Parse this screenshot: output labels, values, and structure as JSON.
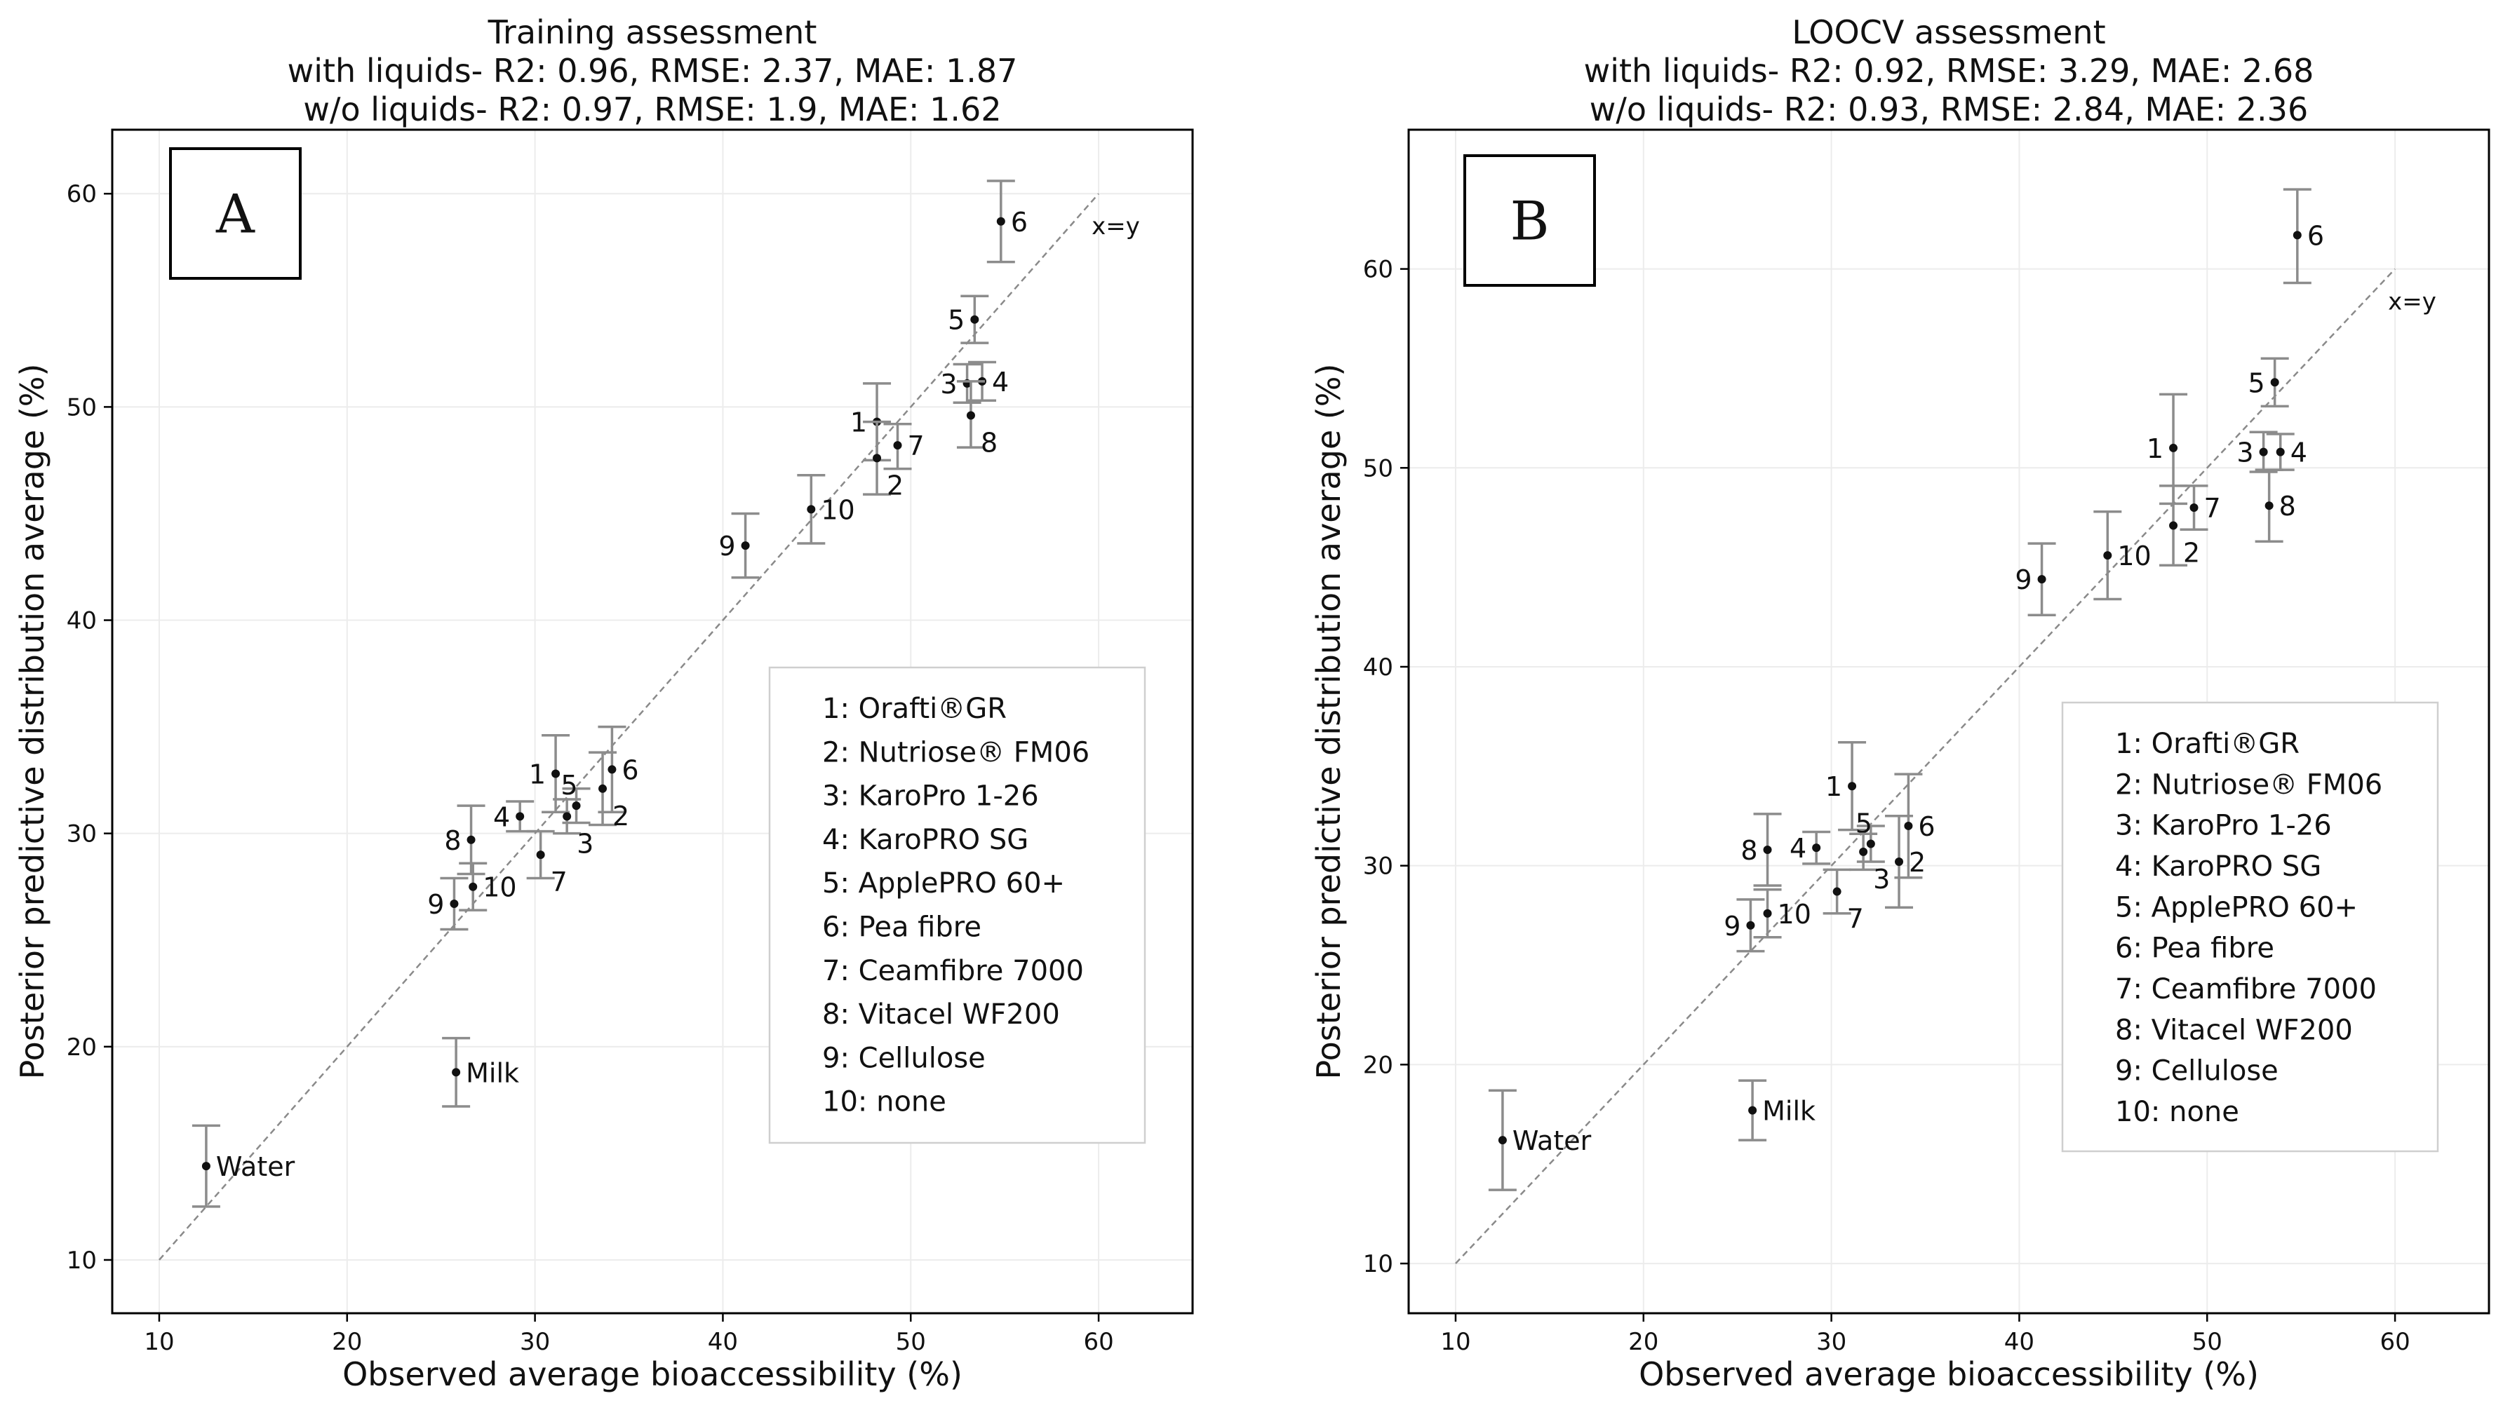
{
  "chart_data": [
    {
      "type": "scatter",
      "panel_label": "A",
      "title": "Training assessment",
      "subtitle_lines": [
        "with liquids- R2: 0.96, RMSE: 2.37, MAE: 1.87",
        "w/o liquids- R2: 0.97, RMSE: 1.9, MAE: 1.62"
      ],
      "xlabel": "Observed average bioaccessibility (%)",
      "ylabel": "Posterior predictive distribution average (%)",
      "xlim": [
        7.5,
        65
      ],
      "ylim": [
        7.5,
        63
      ],
      "xticks": [
        10,
        20,
        30,
        40,
        50,
        60
      ],
      "yticks": [
        10,
        20,
        30,
        40,
        50,
        60
      ],
      "grid": true,
      "identity_line": {
        "label": "x=y",
        "from": 10,
        "to": 60
      },
      "legend_position": "center-right",
      "legend": [
        "1: Orafti®GR",
        "2: Nutriose® FM06",
        "3: KaroPro 1-26",
        "4: KaroPRO SG",
        "5: ApplePRO 60+",
        "6: Pea fibre",
        "7: Ceamfibre 7000",
        "8: Vitacel WF200",
        "9: Cellulose",
        "10: none"
      ],
      "points": [
        {
          "label": "6",
          "x": 54.8,
          "y": 58.7,
          "lo": 56.8,
          "hi": 60.6,
          "side": "right"
        },
        {
          "label": "5",
          "x": 53.4,
          "y": 54.1,
          "lo": 53.0,
          "hi": 55.2,
          "side": "left"
        },
        {
          "label": "3",
          "x": 53.0,
          "y": 51.1,
          "lo": 50.2,
          "hi": 52.0,
          "side": "left"
        },
        {
          "label": "4",
          "x": 53.8,
          "y": 51.2,
          "lo": 50.3,
          "hi": 52.1,
          "side": "right"
        },
        {
          "label": "8",
          "x": 53.2,
          "y": 49.6,
          "lo": 48.1,
          "hi": 51.2,
          "side": "right-low"
        },
        {
          "label": "1",
          "x": 48.2,
          "y": 49.3,
          "lo": 47.5,
          "hi": 51.1,
          "side": "left"
        },
        {
          "label": "7",
          "x": 49.3,
          "y": 48.2,
          "lo": 47.1,
          "hi": 49.2,
          "side": "right"
        },
        {
          "label": "2",
          "x": 48.2,
          "y": 47.6,
          "lo": 45.9,
          "hi": 49.3,
          "side": "right-low"
        },
        {
          "label": "10",
          "x": 44.7,
          "y": 45.2,
          "lo": 43.6,
          "hi": 46.8,
          "side": "right"
        },
        {
          "label": "9",
          "x": 41.2,
          "y": 43.5,
          "lo": 42.0,
          "hi": 45.0,
          "side": "left"
        },
        {
          "label": "1",
          "x": 31.1,
          "y": 32.8,
          "lo": 31.0,
          "hi": 34.6,
          "side": "left"
        },
        {
          "label": "5",
          "x": 32.2,
          "y": 31.3,
          "lo": 30.5,
          "hi": 32.1,
          "side": "left-high"
        },
        {
          "label": "3",
          "x": 31.7,
          "y": 30.8,
          "lo": 30.0,
          "hi": 31.6,
          "side": "right-low"
        },
        {
          "label": "6",
          "x": 34.1,
          "y": 33.0,
          "lo": 31.0,
          "hi": 35.0,
          "side": "right"
        },
        {
          "label": "2",
          "x": 33.6,
          "y": 32.1,
          "lo": 30.4,
          "hi": 33.8,
          "side": "right-low"
        },
        {
          "label": "4",
          "x": 29.2,
          "y": 30.8,
          "lo": 30.1,
          "hi": 31.5,
          "side": "left"
        },
        {
          "label": "8",
          "x": 26.6,
          "y": 29.7,
          "lo": 28.1,
          "hi": 31.3,
          "side": "left"
        },
        {
          "label": "7",
          "x": 30.3,
          "y": 29.0,
          "lo": 27.9,
          "hi": 30.1,
          "side": "right-low"
        },
        {
          "label": "10",
          "x": 26.7,
          "y": 27.5,
          "lo": 26.4,
          "hi": 28.6,
          "side": "right"
        },
        {
          "label": "9",
          "x": 25.7,
          "y": 26.7,
          "lo": 25.5,
          "hi": 27.9,
          "side": "left"
        },
        {
          "label": "Milk",
          "x": 25.8,
          "y": 18.8,
          "lo": 17.2,
          "hi": 20.4,
          "side": "right"
        },
        {
          "label": "Water",
          "x": 12.5,
          "y": 14.4,
          "lo": 12.5,
          "hi": 16.3,
          "side": "right"
        }
      ]
    },
    {
      "type": "scatter",
      "panel_label": "B",
      "title": "LOOCV assessment",
      "subtitle_lines": [
        "with liquids- R2: 0.92, RMSE: 3.29, MAE: 2.68",
        "w/o liquids- R2: 0.93, RMSE: 2.84, MAE: 2.36"
      ],
      "xlabel": "Observed average bioaccessibility (%)",
      "ylabel": "Posterior predictive distribution average (%)",
      "xlim": [
        7.5,
        65
      ],
      "ylim": [
        7.5,
        67
      ],
      "xticks": [
        10,
        20,
        30,
        40,
        50,
        60
      ],
      "yticks": [
        10,
        20,
        30,
        40,
        50,
        60
      ],
      "grid": true,
      "identity_line": {
        "label": "x=y",
        "from": 10,
        "to": 60
      },
      "legend_position": "center-right",
      "legend": [
        "1: Orafti®GR",
        "2: Nutriose® FM06",
        "3: KaroPro 1-26",
        "4: KaroPRO SG",
        "5: ApplePRO 60+",
        "6: Pea fibre",
        "7: Ceamfibre 7000",
        "8: Vitacel WF200",
        "9: Cellulose",
        "10: none"
      ],
      "points": [
        {
          "label": "6",
          "x": 54.8,
          "y": 61.7,
          "lo": 59.3,
          "hi": 64.0,
          "side": "right"
        },
        {
          "label": "5",
          "x": 53.6,
          "y": 54.3,
          "lo": 53.1,
          "hi": 55.5,
          "side": "left"
        },
        {
          "label": "3",
          "x": 53.0,
          "y": 50.8,
          "lo": 49.8,
          "hi": 51.8,
          "side": "left"
        },
        {
          "label": "4",
          "x": 53.9,
          "y": 50.8,
          "lo": 49.9,
          "hi": 51.7,
          "side": "right"
        },
        {
          "label": "8",
          "x": 53.3,
          "y": 48.1,
          "lo": 46.3,
          "hi": 49.9,
          "side": "right"
        },
        {
          "label": "1",
          "x": 48.2,
          "y": 51.0,
          "lo": 48.2,
          "hi": 53.7,
          "side": "left"
        },
        {
          "label": "7",
          "x": 49.3,
          "y": 48.0,
          "lo": 46.9,
          "hi": 49.1,
          "side": "right"
        },
        {
          "label": "2",
          "x": 48.2,
          "y": 47.1,
          "lo": 45.1,
          "hi": 49.1,
          "side": "right-low"
        },
        {
          "label": "10",
          "x": 44.7,
          "y": 45.6,
          "lo": 43.4,
          "hi": 47.8,
          "side": "right"
        },
        {
          "label": "9",
          "x": 41.2,
          "y": 44.4,
          "lo": 42.6,
          "hi": 46.2,
          "side": "left"
        },
        {
          "label": "1",
          "x": 31.1,
          "y": 34.0,
          "lo": 31.8,
          "hi": 36.2,
          "side": "left"
        },
        {
          "label": "5",
          "x": 32.1,
          "y": 31.1,
          "lo": 30.2,
          "hi": 32.0,
          "side": "left-high"
        },
        {
          "label": "3",
          "x": 31.7,
          "y": 30.7,
          "lo": 29.8,
          "hi": 31.6,
          "side": "right-low"
        },
        {
          "label": "6",
          "x": 34.1,
          "y": 32.0,
          "lo": 29.4,
          "hi": 34.6,
          "side": "right"
        },
        {
          "label": "2",
          "x": 33.6,
          "y": 30.2,
          "lo": 27.9,
          "hi": 32.5,
          "side": "right"
        },
        {
          "label": "4",
          "x": 29.2,
          "y": 30.9,
          "lo": 30.1,
          "hi": 31.7,
          "side": "left"
        },
        {
          "label": "8",
          "x": 26.6,
          "y": 30.8,
          "lo": 29.0,
          "hi": 32.6,
          "side": "left"
        },
        {
          "label": "7",
          "x": 30.3,
          "y": 28.7,
          "lo": 27.6,
          "hi": 29.8,
          "side": "right-low"
        },
        {
          "label": "10",
          "x": 26.6,
          "y": 27.6,
          "lo": 26.4,
          "hi": 28.8,
          "side": "right"
        },
        {
          "label": "9",
          "x": 25.7,
          "y": 27.0,
          "lo": 25.7,
          "hi": 28.3,
          "side": "left"
        },
        {
          "label": "Milk",
          "x": 25.8,
          "y": 17.7,
          "lo": 16.2,
          "hi": 19.2,
          "side": "right"
        },
        {
          "label": "Water",
          "x": 12.5,
          "y": 16.2,
          "lo": 13.7,
          "hi": 18.7,
          "side": "right"
        }
      ]
    }
  ]
}
